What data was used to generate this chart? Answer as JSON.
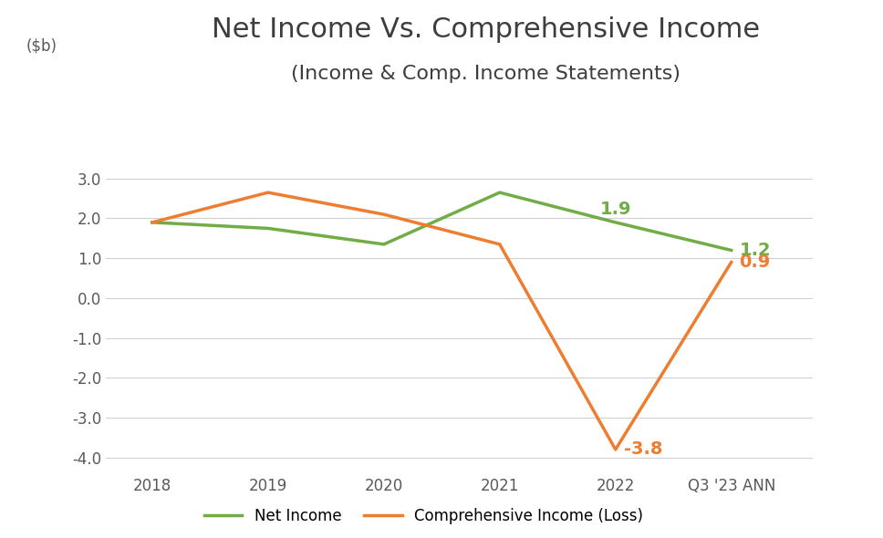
{
  "title_line1": "Net Income Vs. Comprehensive Income",
  "title_line2": "(Income & Comp. Income Statements)",
  "ylabel": "($b)",
  "categories": [
    "2018",
    "2019",
    "2020",
    "2021",
    "2022",
    "Q3 '23 ANN"
  ],
  "net_income": [
    1.9,
    1.75,
    1.35,
    2.65,
    1.9,
    1.2
  ],
  "comp_income": [
    1.9,
    2.65,
    2.1,
    1.35,
    -3.8,
    0.9
  ],
  "net_income_color": "#70ad47",
  "comp_income_color": "#ed7d31",
  "ylim": [
    -4.4,
    3.7
  ],
  "yticks": [
    -4.0,
    -3.0,
    -2.0,
    -1.0,
    0.0,
    1.0,
    2.0,
    3.0
  ],
  "line_width": 2.5,
  "background_color": "#ffffff",
  "legend_net_income": "Net Income",
  "legend_comp_income": "Comprehensive Income (Loss)",
  "tick_fontsize": 12,
  "title_fontsize1": 22,
  "title_fontsize2": 16,
  "title_color": "#3d3d3d",
  "tick_color": "#595959"
}
